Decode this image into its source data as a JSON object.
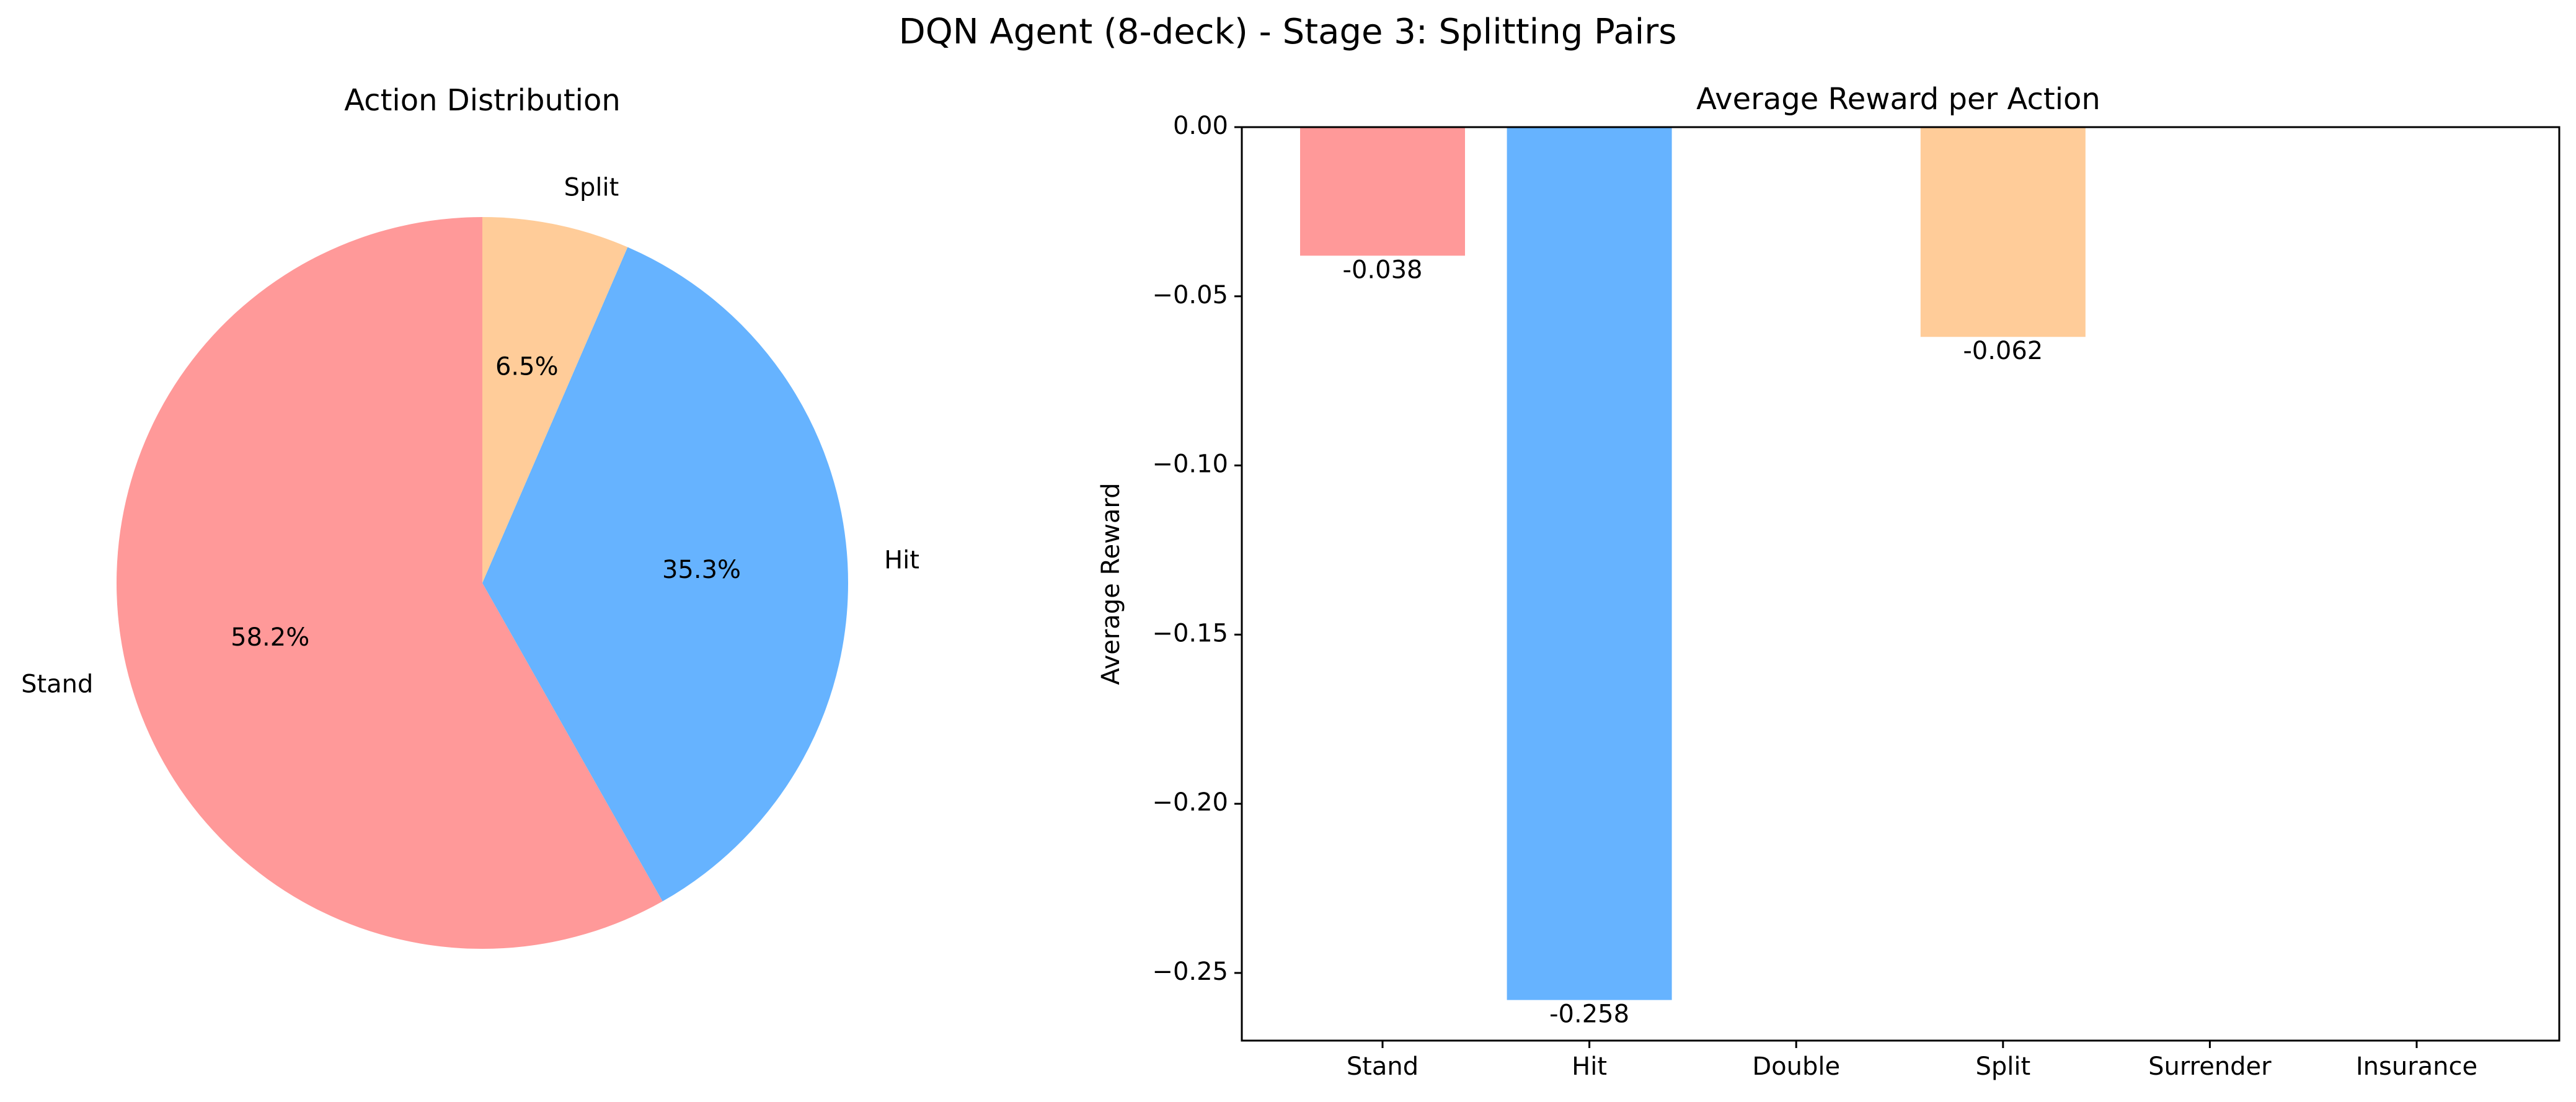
{
  "figure": {
    "title": "DQN Agent (8-deck) - Stage 3: Splitting Pairs"
  },
  "chart_data": [
    {
      "type": "pie",
      "title": "Action Distribution",
      "labels": [
        "Stand",
        "Hit",
        "Split"
      ],
      "values": [
        58.2,
        35.3,
        6.5
      ],
      "value_labels": [
        "58.2%",
        "35.3%",
        "6.5%"
      ],
      "colors": [
        "#ff9999",
        "#66b3ff",
        "#ffcc99"
      ],
      "start_angle_deg": 90,
      "direction": "counterclockwise"
    },
    {
      "type": "bar",
      "title": "Average Reward per Action",
      "xlabel": "",
      "ylabel": "Average Reward",
      "categories": [
        "Stand",
        "Hit",
        "Double",
        "Split",
        "Surrender",
        "Insurance"
      ],
      "values": [
        -0.038,
        -0.258,
        0,
        -0.062,
        0,
        0
      ],
      "value_labels": [
        "-0.038",
        "-0.258",
        "",
        "-0.062",
        "",
        ""
      ],
      "colors": [
        "#ff9999",
        "#66b3ff",
        "#99ff99",
        "#ffcc99",
        "#c2c2f0",
        "#ffb3e6"
      ],
      "ylim": [
        -0.27,
        0.0
      ],
      "yticks": [
        0.0,
        -0.05,
        -0.1,
        -0.15,
        -0.2,
        -0.25
      ],
      "ytick_labels": [
        "0.00",
        "−0.05",
        "−0.10",
        "−0.15",
        "−0.20",
        "−0.25"
      ],
      "grid": false
    }
  ]
}
